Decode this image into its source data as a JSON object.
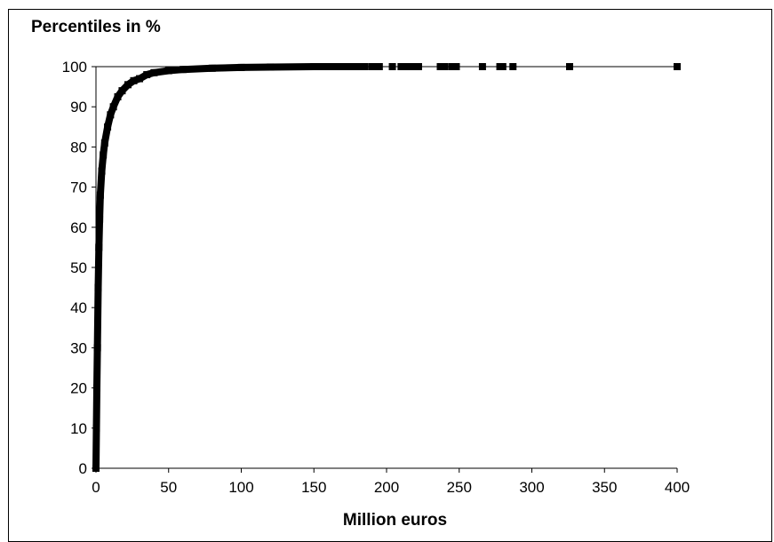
{
  "chart_data": {
    "type": "scatter",
    "title": "",
    "ylabel": "Percentiles in %",
    "xlabel": "Million euros",
    "xlim": [
      0,
      400
    ],
    "ylim": [
      0,
      100
    ],
    "xticks": [
      "0",
      "50",
      "100",
      "150",
      "200",
      "250",
      "300",
      "350",
      "400"
    ],
    "yticks": [
      "0",
      "10",
      "20",
      "30",
      "40",
      "50",
      "60",
      "70",
      "80",
      "90",
      "100"
    ],
    "grid": false,
    "legend": "none",
    "series": [
      {
        "color": "#000000",
        "x": [
          0,
          0.3,
          0.6,
          1,
          1.5,
          2,
          2.5,
          3,
          4,
          5,
          6,
          8,
          10,
          12,
          15,
          18,
          22,
          26,
          30,
          35,
          40,
          50,
          60,
          80,
          100,
          120,
          150,
          170,
          185,
          190,
          193,
          195,
          204,
          210,
          212,
          215,
          218,
          220,
          222,
          237,
          240,
          245,
          248,
          266,
          278,
          280,
          287,
          326,
          400
        ],
        "y": [
          0,
          10,
          20,
          30,
          45,
          55,
          62,
          68,
          74,
          78,
          81,
          85,
          88,
          90,
          92.5,
          94,
          95.5,
          96.5,
          97,
          98,
          98.5,
          99,
          99.3,
          99.6,
          99.8,
          99.9,
          100,
          100,
          100,
          100,
          100,
          100,
          100,
          100,
          100,
          100,
          100,
          100,
          100,
          100,
          100,
          100,
          100,
          100,
          100,
          100,
          100,
          100,
          100
        ]
      }
    ]
  }
}
